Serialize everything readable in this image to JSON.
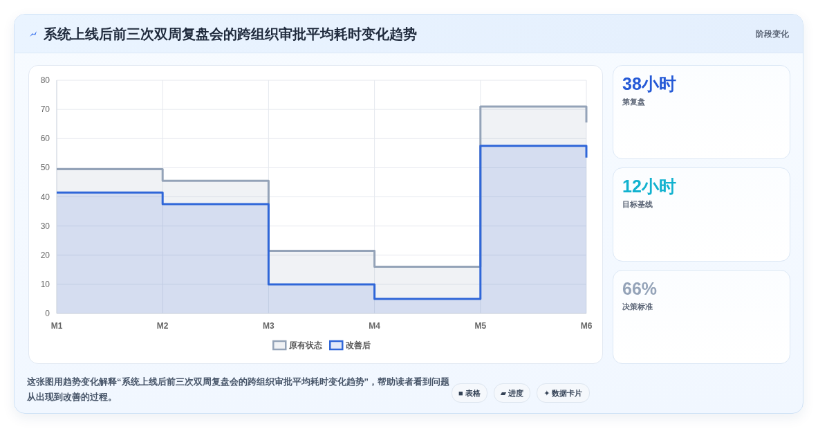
{
  "chart_data": {
    "type": "area",
    "title": "系统上线后前三次双周复盘会的跨组织审批平均耗时变化趋势",
    "subtitle": "阶段变化",
    "categories": [
      "M1",
      "M2",
      "M3",
      "M4",
      "M5",
      "M6"
    ],
    "series": [
      {
        "name": "原有状态",
        "color": "#94a3b8",
        "x": [
          "M1",
          "M2",
          "M2",
          "M3",
          "M3",
          "M4",
          "M4",
          "M5",
          "M5",
          "M6",
          "M6"
        ],
        "values": [
          49.5,
          49.5,
          45.5,
          45.5,
          21.5,
          21.5,
          16,
          16,
          71,
          71,
          65.5
        ]
      },
      {
        "name": "改善后",
        "color": "#2f66d8",
        "x": [
          "M1",
          "M2",
          "M2",
          "M3",
          "M3",
          "M4",
          "M4",
          "M5",
          "M5",
          "M6",
          "M6"
        ],
        "values": [
          41.5,
          41.5,
          37.5,
          37.5,
          10,
          10,
          5,
          5,
          57.5,
          57.5,
          53.5
        ]
      }
    ],
    "ylim": [
      0,
      80
    ],
    "yticks": [
      0,
      10,
      20,
      30,
      40,
      50,
      60,
      70,
      80
    ],
    "grid": true,
    "legend": "bottom",
    "annotations": [
      "38小时",
      "第复盘",
      "12小时",
      "目标基线",
      "66%",
      "决策标准",
      "这张图用趋势变化解释“系统上线后前三次双周复盘会的跨组织审批平均耗时变化趋势”，帮助读者看到问题从出现到改善的过程。",
      "■ 表格",
      "▰ 进度",
      "✦ 数据卡片"
    ]
  }
}
